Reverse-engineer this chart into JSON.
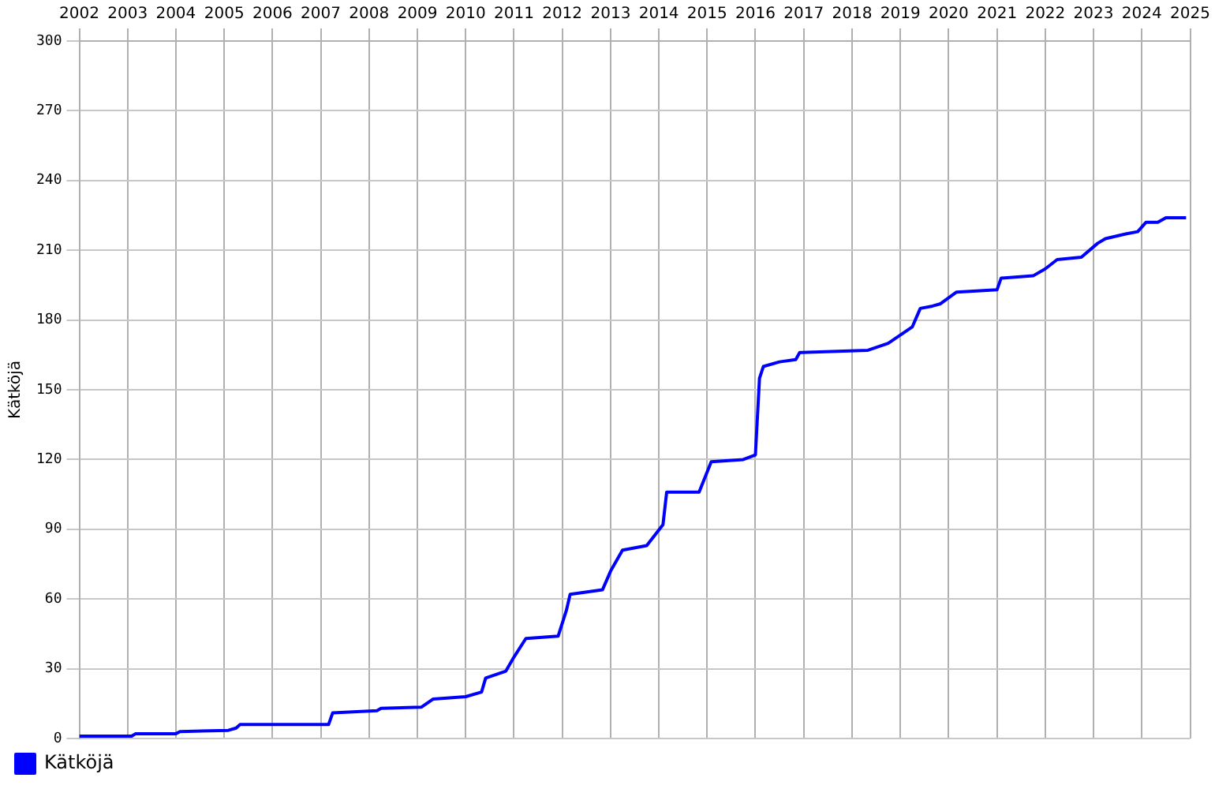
{
  "chart_data": {
    "type": "line",
    "ylabel": "Kätköjä",
    "x": [
      "2002-01",
      "2003-02",
      "2003-03",
      "2004-01",
      "2004-02",
      "2005-02",
      "2005-04",
      "2005-05",
      "2007-03",
      "2007-04",
      "2008-03",
      "2008-04",
      "2009-02",
      "2009-05",
      "2010-01",
      "2010-05",
      "2010-06",
      "2010-11",
      "2011-01",
      "2011-04",
      "2011-12",
      "2012-02",
      "2012-03",
      "2012-11",
      "2013-01",
      "2013-04",
      "2013-10",
      "2014-02",
      "2014-03",
      "2014-11",
      "2015-02",
      "2015-10",
      "2016-01",
      "2016-02",
      "2016-03",
      "2016-07",
      "2016-11",
      "2016-12",
      "2018-05",
      "2018-10",
      "2019-04",
      "2019-06",
      "2019-09",
      "2019-11",
      "2020-03",
      "2021-01",
      "2021-02",
      "2021-10",
      "2022-01",
      "2022-04",
      "2022-10",
      "2023-02",
      "2023-04",
      "2023-09",
      "2023-12",
      "2024-02",
      "2024-05",
      "2024-07",
      "2024-12"
    ],
    "series": [
      {
        "name": "Kätköjä",
        "color": "#0000ff",
        "values": [
          1,
          1,
          2,
          2,
          3,
          3.5,
          4.5,
          6,
          6,
          11,
          12,
          13,
          13.5,
          17,
          18,
          20,
          26,
          29,
          35,
          43,
          44,
          55,
          62,
          64,
          72,
          81,
          83,
          92,
          106,
          106,
          119,
          120,
          122,
          155,
          160,
          162,
          163,
          166,
          167,
          170,
          177,
          185,
          186,
          187,
          192,
          193,
          198,
          199,
          202,
          206,
          207,
          213,
          215,
          217,
          218,
          222,
          222,
          224,
          224
        ]
      }
    ],
    "xlim": [
      "2002-01",
      "2025-01"
    ],
    "xticks": [
      "2002",
      "2003",
      "2004",
      "2005",
      "2006",
      "2007",
      "2008",
      "2009",
      "2010",
      "2011",
      "2012",
      "2013",
      "2014",
      "2015",
      "2016",
      "2017",
      "2018",
      "2019",
      "2020",
      "2021",
      "2022",
      "2023",
      "2024",
      "2025"
    ],
    "ylim": [
      0,
      300
    ],
    "yticks": [
      0,
      30,
      60,
      90,
      120,
      150,
      180,
      210,
      240,
      270,
      300
    ],
    "grid": true,
    "legend": "bottom left",
    "marker": "none",
    "line_style": "solid"
  }
}
